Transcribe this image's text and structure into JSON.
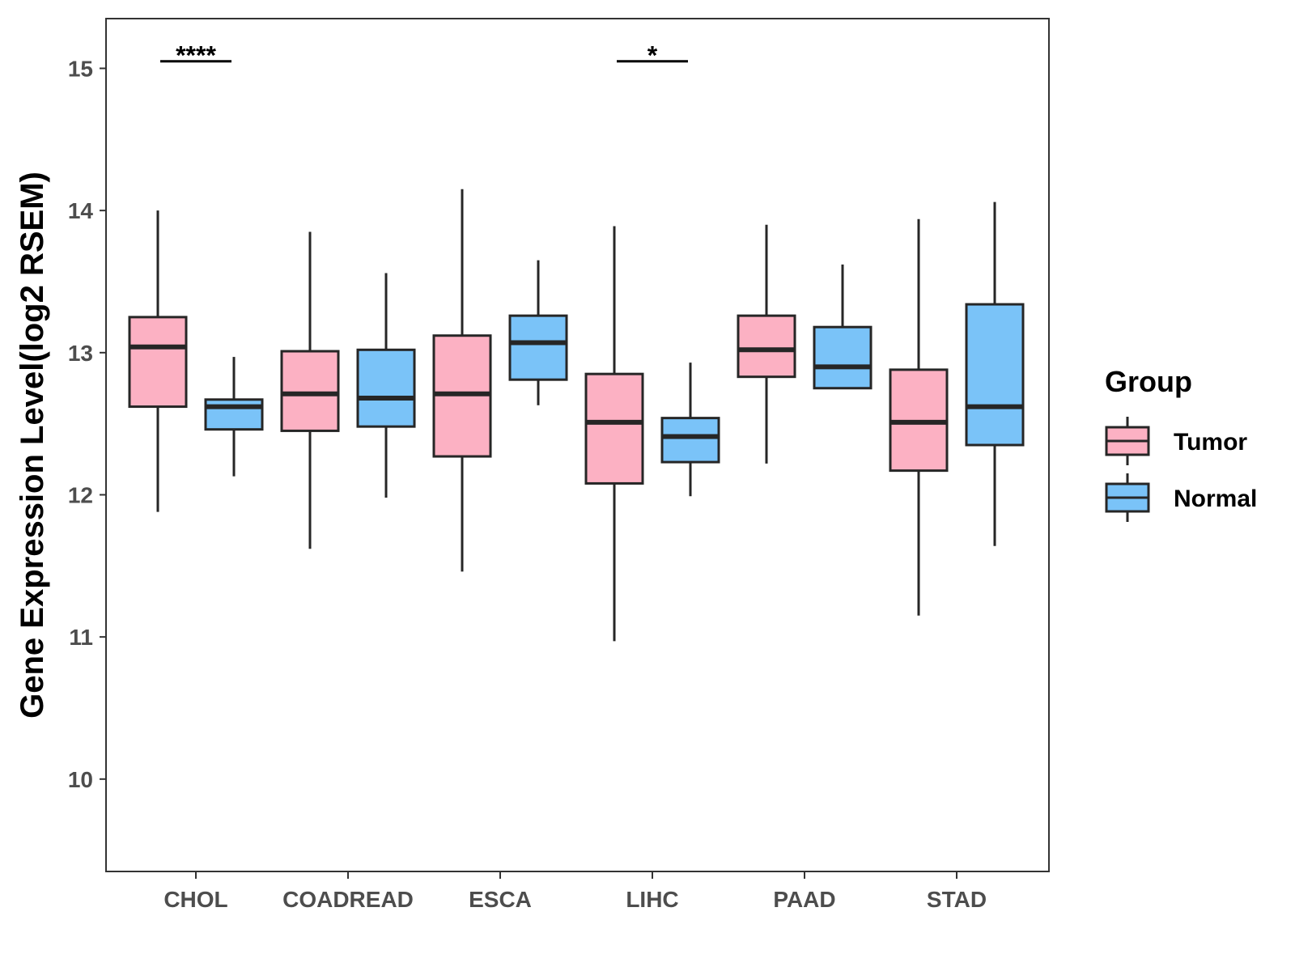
{
  "chart_data": {
    "type": "boxplot",
    "title": "",
    "xlabel": "",
    "ylabel": "Gene Expression Level(log2 RSEM)",
    "ylim": [
      9.35,
      15.35
    ],
    "yticks": [
      10,
      11,
      12,
      13,
      14,
      15
    ],
    "grid": false,
    "legend": {
      "title": "Group",
      "position": "right"
    },
    "categories": [
      "CHOL",
      "COADREAD",
      "ESCA",
      "LIHC",
      "PAAD",
      "STAD"
    ],
    "series": [
      {
        "name": "Tumor",
        "color": "#fcb1c3",
        "boxes": [
          {
            "whisker_low": 11.88,
            "q1": 12.62,
            "median": 13.04,
            "q3": 13.25,
            "whisker_high": 14.0
          },
          {
            "whisker_low": 11.62,
            "q1": 12.45,
            "median": 12.71,
            "q3": 13.01,
            "whisker_high": 13.85
          },
          {
            "whisker_low": 11.46,
            "q1": 12.27,
            "median": 12.71,
            "q3": 13.12,
            "whisker_high": 14.15
          },
          {
            "whisker_low": 10.97,
            "q1": 12.08,
            "median": 12.51,
            "q3": 12.85,
            "whisker_high": 13.89
          },
          {
            "whisker_low": 12.22,
            "q1": 12.83,
            "median": 13.02,
            "q3": 13.26,
            "whisker_high": 13.9
          },
          {
            "whisker_low": 11.15,
            "q1": 12.17,
            "median": 12.51,
            "q3": 12.88,
            "whisker_high": 13.94
          }
        ]
      },
      {
        "name": "Normal",
        "color": "#7ac3f8",
        "boxes": [
          {
            "whisker_low": 12.13,
            "q1": 12.46,
            "median": 12.62,
            "q3": 12.67,
            "whisker_high": 12.97
          },
          {
            "whisker_low": 11.98,
            "q1": 12.48,
            "median": 12.68,
            "q3": 13.02,
            "whisker_high": 13.56
          },
          {
            "whisker_low": 12.63,
            "q1": 12.81,
            "median": 13.07,
            "q3": 13.26,
            "whisker_high": 13.65
          },
          {
            "whisker_low": 11.99,
            "q1": 12.23,
            "median": 12.41,
            "q3": 12.54,
            "whisker_high": 12.93
          },
          {
            "whisker_low": 12.75,
            "q1": 12.75,
            "median": 12.9,
            "q3": 13.18,
            "whisker_high": 13.62
          },
          {
            "whisker_low": 11.64,
            "q1": 12.35,
            "median": 12.62,
            "q3": 13.34,
            "whisker_high": 14.06
          }
        ]
      }
    ],
    "annotations": [
      {
        "category": "CHOL",
        "label": "****",
        "y": 15.05
      },
      {
        "category": "LIHC",
        "label": "*",
        "y": 15.05
      }
    ]
  }
}
